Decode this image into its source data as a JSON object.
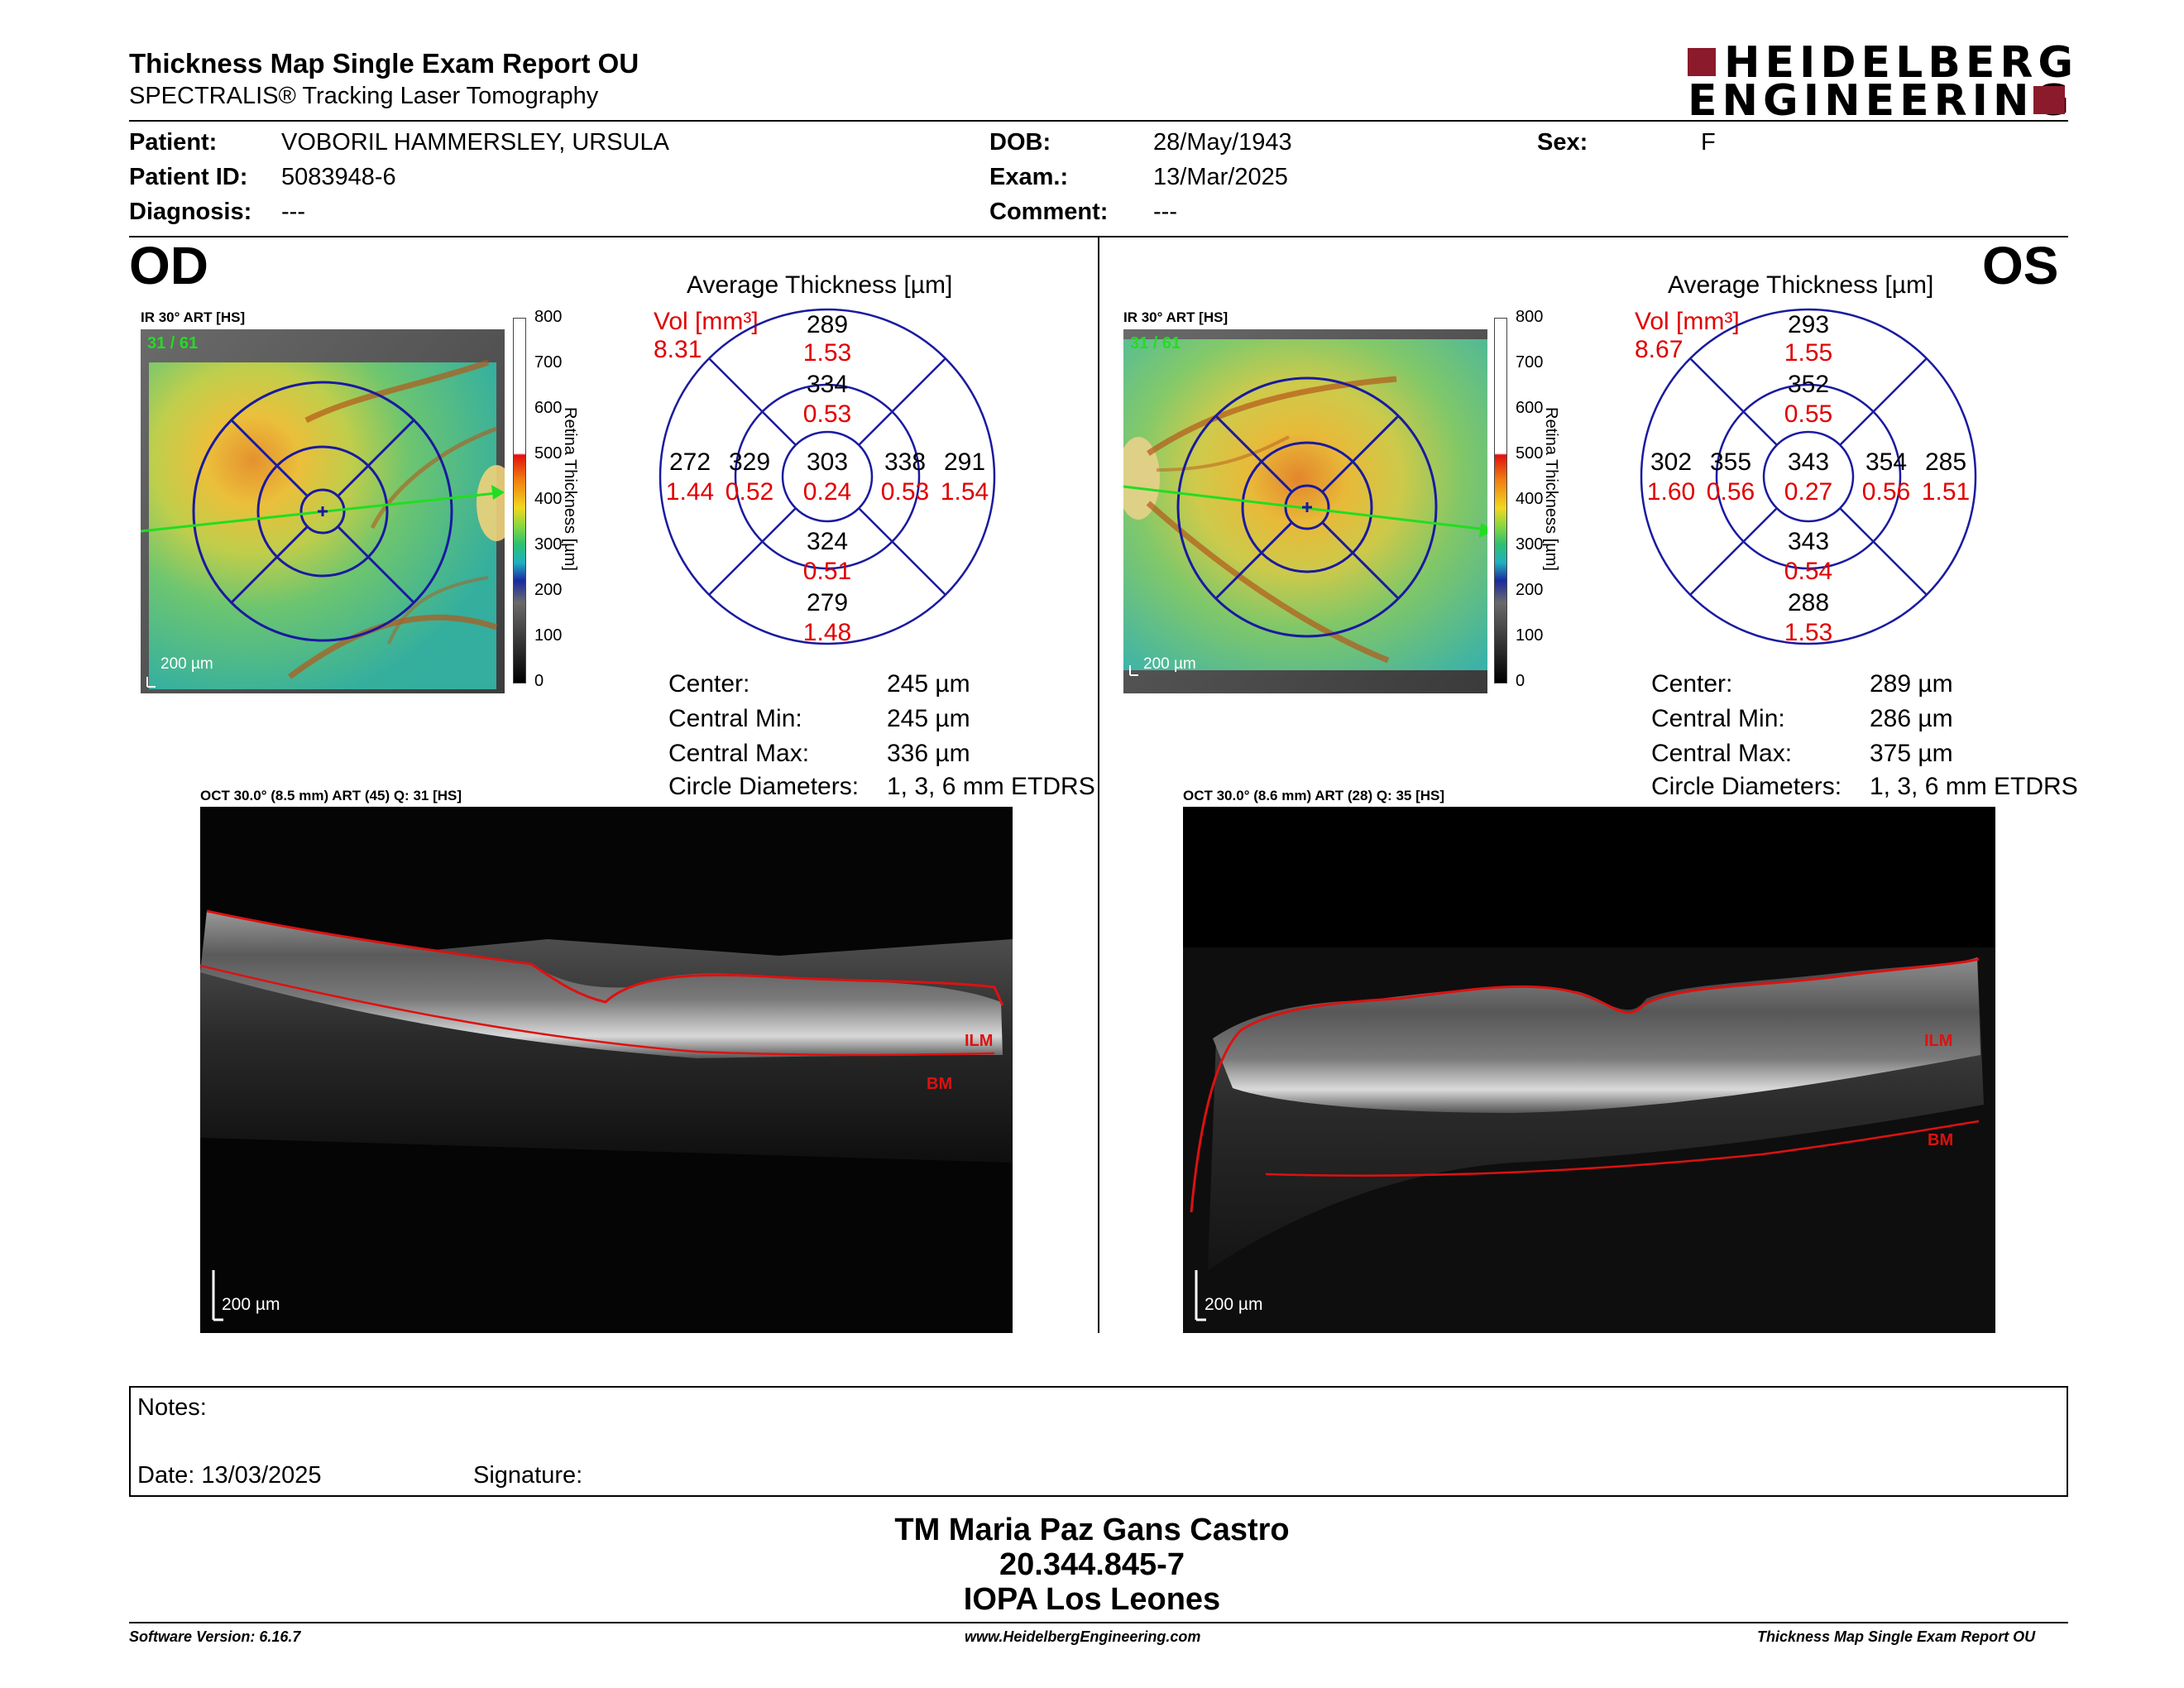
{
  "header": {
    "title": "Thickness Map Single Exam Report OU",
    "subtitle": "SPECTRALIS® Tracking Laser Tomography",
    "brand_line1": "HEIDELBERG",
    "brand_line2": "ENGINEERING"
  },
  "patient": {
    "patient_label": "Patient:",
    "patient_value": "VOBORIL HAMMERSLEY, URSULA",
    "id_label": "Patient ID:",
    "id_value": "5083948-6",
    "diagnosis_label": "Diagnosis:",
    "diagnosis_value": "---",
    "dob_label": "DOB:",
    "dob_value": "28/May/1943",
    "exam_label": "Exam.:",
    "exam_value": "13/Mar/2025",
    "comment_label": "Comment:",
    "comment_value": "---",
    "sex_label": "Sex:",
    "sex_value": "F"
  },
  "od": {
    "eye": "OD",
    "fundus_label": "IR 30° ART [HS]",
    "frame_counter": "31 / 61",
    "scale": "200 µm",
    "avg_title": "Average Thickness [µm]",
    "vol_label": "Vol [mm³]",
    "vol_total": "8.31",
    "sectors": {
      "center": {
        "t": "303",
        "v": "0.24"
      },
      "inner_sup": {
        "t": "334",
        "v": "0.53"
      },
      "inner_inf": {
        "t": "324",
        "v": "0.51"
      },
      "inner_left": {
        "t": "329",
        "v": "0.52"
      },
      "inner_right": {
        "t": "338",
        "v": "0.53"
      },
      "outer_sup": {
        "t": "289",
        "v": "1.53"
      },
      "outer_inf": {
        "t": "279",
        "v": "1.48"
      },
      "outer_left": {
        "t": "272",
        "v": "1.44"
      },
      "outer_right": {
        "t": "291",
        "v": "1.54"
      }
    },
    "stats": [
      {
        "label": "Center:",
        "value": "245 µm"
      },
      {
        "label": "Central Min:",
        "value": "245 µm"
      },
      {
        "label": "Central Max:",
        "value": "336 µm"
      },
      {
        "label": "Circle Diameters:",
        "value": "1, 3, 6 mm ETDRS"
      }
    ],
    "oct_label": "OCT 30.0° (8.5 mm) ART (45) Q: 31 [HS]",
    "ilm": "ILM",
    "bm": "BM"
  },
  "os": {
    "eye": "OS",
    "fundus_label": "IR 30° ART [HS]",
    "frame_counter": "31 / 61",
    "scale": "200 µm",
    "avg_title": "Average Thickness [µm]",
    "vol_label": "Vol [mm³]",
    "vol_total": "8.67",
    "sectors": {
      "center": {
        "t": "343",
        "v": "0.27"
      },
      "inner_sup": {
        "t": "352",
        "v": "0.55"
      },
      "inner_inf": {
        "t": "343",
        "v": "0.54"
      },
      "inner_left": {
        "t": "355",
        "v": "0.56"
      },
      "inner_right": {
        "t": "354",
        "v": "0.56"
      },
      "outer_sup": {
        "t": "293",
        "v": "1.55"
      },
      "outer_inf": {
        "t": "288",
        "v": "1.53"
      },
      "outer_left": {
        "t": "302",
        "v": "1.60"
      },
      "outer_right": {
        "t": "285",
        "v": "1.51"
      }
    },
    "stats": [
      {
        "label": "Center:",
        "value": "289 µm"
      },
      {
        "label": "Central Min:",
        "value": "286 µm"
      },
      {
        "label": "Central Max:",
        "value": "375 µm"
      },
      {
        "label": "Circle Diameters:",
        "value": "1, 3, 6 mm ETDRS"
      }
    ],
    "oct_label": "OCT 30.0° (8.6 mm) ART (28) Q: 35 [HS]",
    "ilm": "ILM",
    "bm": "BM"
  },
  "colorbar": {
    "ticks": [
      "800",
      "700",
      "600",
      "500",
      "400",
      "300",
      "200",
      "100",
      "0"
    ],
    "title": "Retina Thickness [µm]"
  },
  "notes": {
    "notes_label": "Notes:",
    "date_label": "Date: 13/03/2025",
    "signature_label": "Signature:"
  },
  "signature": {
    "name": "TM Maria Paz Gans Castro",
    "id": "20.344.845-7",
    "org": "IOPA Los Leones"
  },
  "footer": {
    "version": "Software Version: 6.16.7",
    "url": "www.HeidelbergEngineering.com",
    "report": "Thickness Map Single Exam Report OU"
  },
  "colors": {
    "etdrs_grid": "#1a1aa0",
    "volume_red": "#e00000",
    "brand_red": "#8b1a2b",
    "scan_line": "#22dd22"
  }
}
